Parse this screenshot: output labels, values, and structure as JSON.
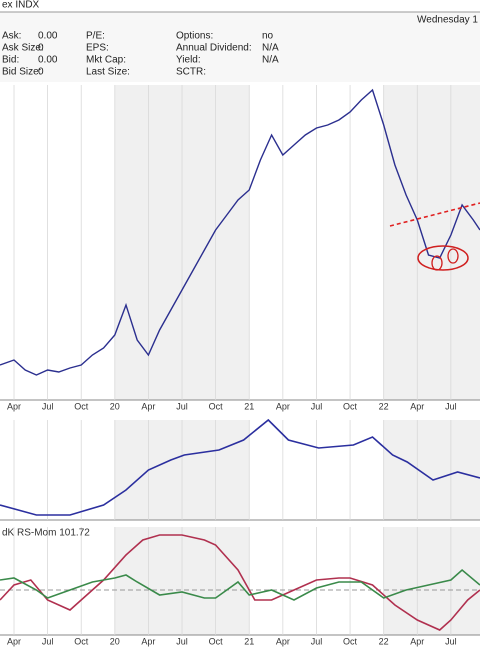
{
  "header": {
    "symbol": "ex INDX",
    "date": "Wednesday 1",
    "fields": [
      [
        "Ask:",
        "0.00",
        "P/E:",
        "",
        "Options:",
        "no"
      ],
      [
        "Ask Size:",
        "0",
        "EPS:",
        "",
        "Annual Dividend:",
        "N/A"
      ],
      [
        "Bid:",
        "0.00",
        "Mkt Cap:",
        "",
        "Yield:",
        "N/A"
      ],
      [
        "Bid Size:",
        "0",
        "Last Size:",
        "",
        "SCTR:",
        ""
      ]
    ]
  },
  "chart_data": [
    {
      "type": "line",
      "xlim": [
        1.75,
        44.6
      ],
      "ylim": [
        0,
        315
      ],
      "xticks": [
        {
          "value": 3,
          "label": "Apr"
        },
        {
          "value": 6,
          "label": "Jul"
        },
        {
          "value": 9,
          "label": "Oct"
        },
        {
          "value": 12,
          "label": "20"
        },
        {
          "value": 15,
          "label": "Apr"
        },
        {
          "value": 18,
          "label": "Jul"
        },
        {
          "value": 21,
          "label": "Oct"
        },
        {
          "value": 24,
          "label": "21"
        },
        {
          "value": 27,
          "label": "Apr"
        },
        {
          "value": 30,
          "label": "Jul"
        },
        {
          "value": 33,
          "label": "Oct"
        },
        {
          "value": 36,
          "label": "22"
        },
        {
          "value": 39,
          "label": "Apr"
        },
        {
          "value": 42,
          "label": "Jul"
        }
      ],
      "x": [
        1.75,
        3,
        4,
        5,
        6,
        7,
        8,
        9,
        10,
        11,
        12,
        13,
        14,
        15,
        16,
        17,
        18,
        19,
        20,
        21,
        22,
        23,
        24,
        25,
        26,
        27,
        28,
        29,
        30,
        31,
        32,
        33,
        34,
        35,
        36,
        37,
        38,
        39,
        40,
        41,
        42,
        43,
        44,
        44.6
      ],
      "series": [
        {
          "color": "#2b2f8f",
          "values": [
            35,
            40,
            30,
            25,
            30,
            28,
            32,
            35,
            45,
            52,
            65,
            95,
            60,
            45,
            70,
            90,
            110,
            130,
            150,
            170,
            185,
            200,
            210,
            240,
            265,
            245,
            255,
            265,
            272,
            275,
            280,
            288,
            300,
            310,
            275,
            235,
            205,
            180,
            145,
            142,
            165,
            195,
            180,
            170
          ]
        }
      ]
    },
    {
      "type": "line",
      "xlim": [
        1.75,
        44.6
      ],
      "ylim": [
        0,
        100
      ],
      "x": [
        1.75,
        5,
        8,
        11,
        13,
        15,
        17,
        18.2,
        21.3,
        23.5,
        25.7,
        27.5,
        30.2,
        33.3,
        35,
        36.8,
        38.1,
        40.4,
        42.6,
        44.6
      ],
      "series": [
        {
          "color": "#2b2f9f",
          "values": [
            15,
            5,
            5,
            15,
            30,
            50,
            60,
            65,
            70,
            80,
            100,
            80,
            72,
            75,
            83,
            65,
            58,
            40,
            48,
            42
          ]
        }
      ]
    },
    {
      "type": "line",
      "xlim": [
        1.75,
        44.6
      ],
      "ylim": [
        0,
        108
      ],
      "legend": "dK RS-Mom 101.72",
      "reference_line": 45,
      "xticks": [
        {
          "value": 3,
          "label": "Apr"
        },
        {
          "value": 6,
          "label": "Jul"
        },
        {
          "value": 9,
          "label": "Oct"
        },
        {
          "value": 12,
          "label": "20"
        },
        {
          "value": 15,
          "label": "Apr"
        },
        {
          "value": 18,
          "label": "Jul"
        },
        {
          "value": 21,
          "label": "Oct"
        },
        {
          "value": 24,
          "label": "21"
        },
        {
          "value": 27,
          "label": "Apr"
        },
        {
          "value": 30,
          "label": "Jul"
        },
        {
          "value": 33,
          "label": "Oct"
        },
        {
          "value": 36,
          "label": "22"
        },
        {
          "value": 39,
          "label": "Apr"
        },
        {
          "value": 42,
          "label": "Jul"
        }
      ],
      "series": [
        {
          "color": "#b0304f",
          "x": [
            1.75,
            3,
            4.5,
            6,
            8,
            9,
            11,
            13,
            14.5,
            16,
            18,
            20,
            21,
            23,
            24.5,
            26,
            28,
            30,
            32,
            33,
            35,
            37,
            39,
            41,
            42,
            43.5,
            44.6
          ],
          "values": [
            35,
            50,
            55,
            35,
            25,
            35,
            55,
            80,
            95,
            100,
            100,
            95,
            90,
            65,
            35,
            35,
            45,
            55,
            57,
            57,
            50,
            30,
            15,
            5,
            15,
            35,
            45
          ]
        },
        {
          "color": "#3a8a4a",
          "x": [
            1.75,
            3,
            5,
            6,
            8,
            10,
            12,
            13,
            14,
            16,
            18,
            20,
            21,
            22,
            23,
            24,
            26,
            28,
            30,
            32,
            34,
            36,
            38,
            40,
            42,
            43,
            44.6
          ],
          "values": [
            55,
            57,
            45,
            37,
            45,
            53,
            57,
            60,
            53,
            40,
            43,
            37,
            37,
            45,
            53,
            40,
            45,
            35,
            47,
            53,
            53,
            37,
            45,
            50,
            55,
            65,
            50
          ]
        }
      ]
    }
  ]
}
